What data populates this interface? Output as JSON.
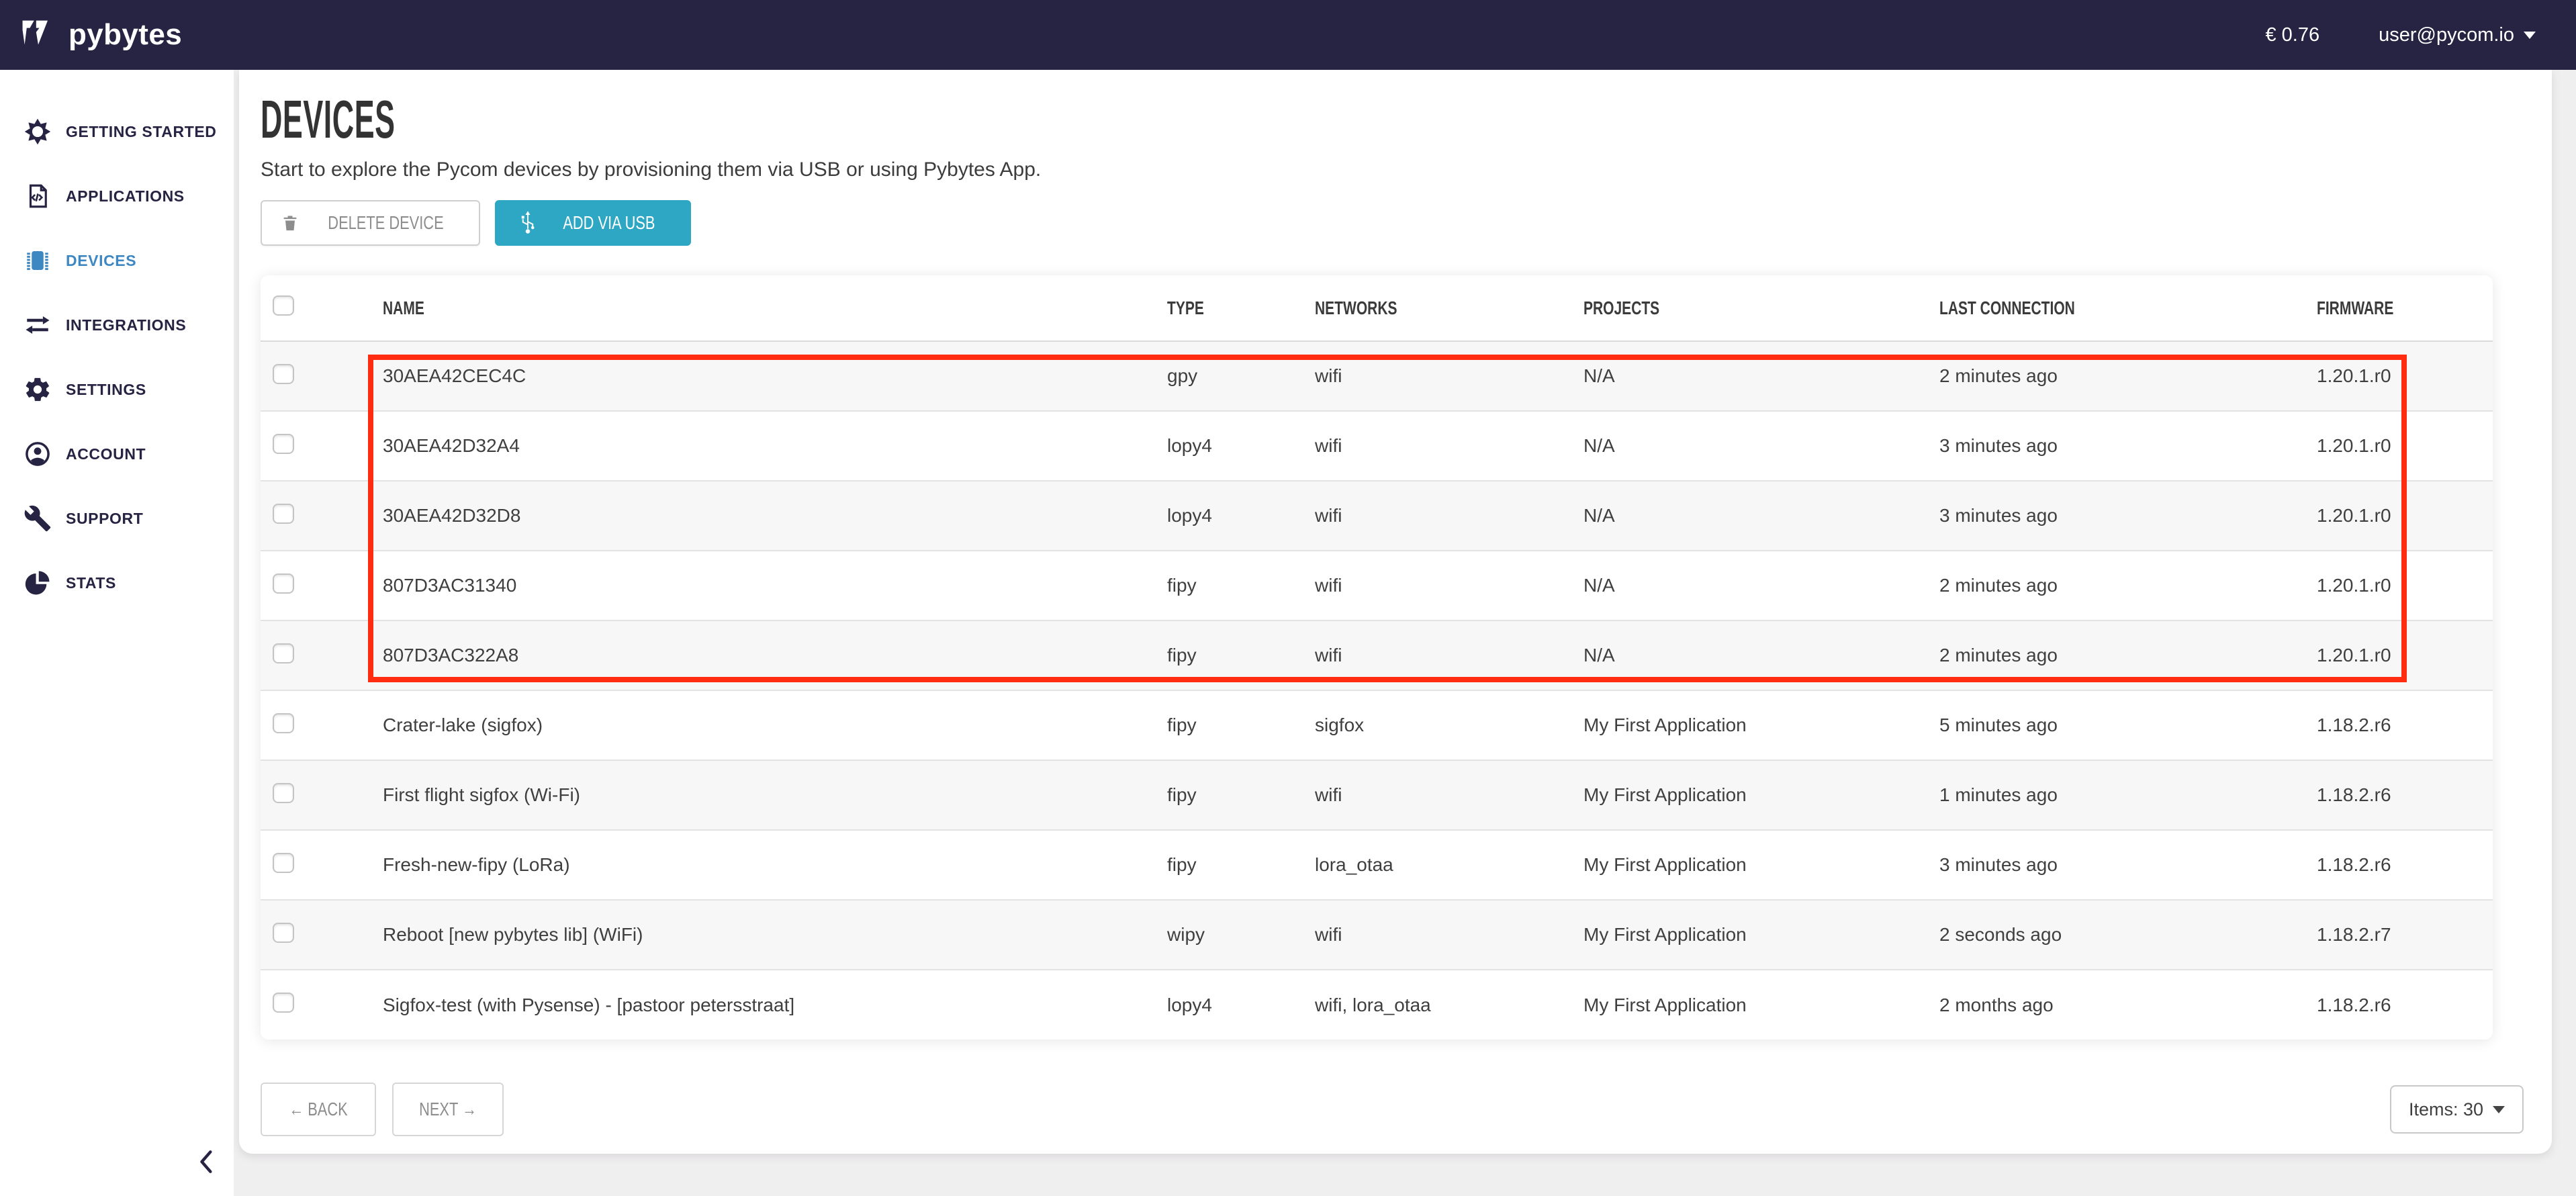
{
  "navbar": {
    "logo_text": "pybytes",
    "balance": "€ 0.76",
    "user_email": "user@pycom.io"
  },
  "sidebar": {
    "items": [
      {
        "id": "getting-started",
        "label": "GETTING STARTED",
        "icon": "sun",
        "active": false
      },
      {
        "id": "applications",
        "label": "APPLICATIONS",
        "icon": "code-document",
        "active": false
      },
      {
        "id": "devices",
        "label": "DEVICES",
        "icon": "chip",
        "active": true
      },
      {
        "id": "integrations",
        "label": "INTEGRATIONS",
        "icon": "arrows-swap",
        "active": false
      },
      {
        "id": "settings",
        "label": "SETTINGS",
        "icon": "gear",
        "active": false
      },
      {
        "id": "account",
        "label": "ACCOUNT",
        "icon": "user",
        "active": false
      },
      {
        "id": "support",
        "label": "SUPPORT",
        "icon": "wrench",
        "active": false
      },
      {
        "id": "stats",
        "label": "STATS",
        "icon": "pie-chart",
        "active": false
      }
    ]
  },
  "page": {
    "title": "DEVICES",
    "subtitle": "Start to explore the Pycom devices by provisioning them via USB or using Pybytes App.",
    "delete_button": "DELETE DEVICE",
    "add_button": "ADD VIA USB"
  },
  "table": {
    "headers": [
      "NAME",
      "TYPE",
      "NETWORKS",
      "PROJECTS",
      "LAST CONNECTION",
      "FIRMWARE"
    ],
    "rows": [
      {
        "name": "30AEA42CEC4C",
        "type": "gpy",
        "networks": "wifi",
        "projects": "N/A",
        "last_connection": "2 minutes ago",
        "firmware": "1.20.1.r0",
        "highlighted": true
      },
      {
        "name": "30AEA42D32A4",
        "type": "lopy4",
        "networks": "wifi",
        "projects": "N/A",
        "last_connection": "3 minutes ago",
        "firmware": "1.20.1.r0",
        "highlighted": true
      },
      {
        "name": "30AEA42D32D8",
        "type": "lopy4",
        "networks": "wifi",
        "projects": "N/A",
        "last_connection": "3 minutes ago",
        "firmware": "1.20.1.r0",
        "highlighted": true
      },
      {
        "name": "807D3AC31340",
        "type": "fipy",
        "networks": "wifi",
        "projects": "N/A",
        "last_connection": "2 minutes ago",
        "firmware": "1.20.1.r0",
        "highlighted": true
      },
      {
        "name": "807D3AC322A8",
        "type": "fipy",
        "networks": "wifi",
        "projects": "N/A",
        "last_connection": "2 minutes ago",
        "firmware": "1.20.1.r0",
        "highlighted": true
      },
      {
        "name": "Crater-lake (sigfox)",
        "type": "fipy",
        "networks": "sigfox",
        "projects": "My First Application",
        "last_connection": "5 minutes ago",
        "firmware": "1.18.2.r6",
        "highlighted": false
      },
      {
        "name": "First flight sigfox (Wi-Fi)",
        "type": "fipy",
        "networks": "wifi",
        "projects": "My First Application",
        "last_connection": "1 minutes ago",
        "firmware": "1.18.2.r6",
        "highlighted": false
      },
      {
        "name": "Fresh-new-fipy (LoRa)",
        "type": "fipy",
        "networks": "lora_otaa",
        "projects": "My First Application",
        "last_connection": "3 minutes ago",
        "firmware": "1.18.2.r6",
        "highlighted": false
      },
      {
        "name": "Reboot [new pybytes lib] (WiFi)",
        "type": "wipy",
        "networks": "wifi",
        "projects": "My First Application",
        "last_connection": "2 seconds ago",
        "firmware": "1.18.2.r7",
        "highlighted": false
      },
      {
        "name": "Sigfox-test (with Pysense) - [pastoor petersstraat]",
        "type": "lopy4",
        "networks": "wifi, lora_otaa",
        "projects": "My First Application",
        "last_connection": "2 months ago",
        "firmware": "1.18.2.r6",
        "highlighted": false
      }
    ]
  },
  "annotation": {
    "description": "red rectangle enclosing the five newly provisioned device rows",
    "color": "#ff2c12"
  },
  "pagination": {
    "back_label": "← BACK",
    "next_label": "NEXT →",
    "items_label": "Items: 30"
  },
  "colors": {
    "navbar_bg": "#262343",
    "sidebar_active": "#3d87c3",
    "add_button_bg": "#2ea7c5",
    "highlight_red": "#ff2c12",
    "row_alt_bg": "#f7f7f7"
  }
}
